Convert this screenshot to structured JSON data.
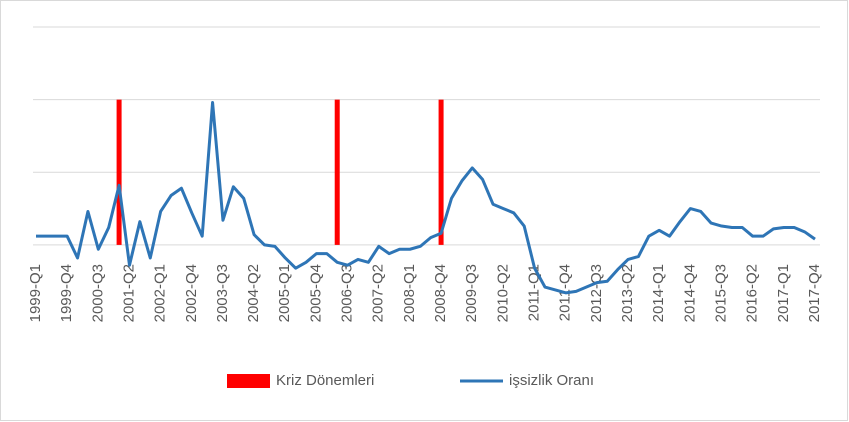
{
  "chart_data": {
    "type": "combo",
    "categories": [
      "1999-Q1",
      null,
      null,
      "1999-Q4",
      null,
      null,
      "2000-Q3",
      null,
      null,
      "2001-Q2",
      null,
      null,
      "2002-Q1",
      null,
      null,
      "2002-Q4",
      null,
      null,
      "2003-Q3",
      null,
      null,
      "2004-Q2",
      null,
      null,
      "2005-Q1",
      null,
      null,
      "2005-Q4",
      null,
      null,
      "2006-Q3",
      null,
      null,
      "2007-Q2",
      null,
      null,
      "2008-Q1",
      null,
      null,
      "2008-Q4",
      null,
      null,
      "2009-Q3",
      null,
      null,
      "2010-Q2",
      null,
      null,
      "2011-Q1",
      null,
      null,
      "2011-Q4",
      null,
      null,
      "2012-Q3",
      null,
      null,
      "2013-Q2",
      null,
      null,
      "2014-Q1",
      null,
      null,
      "2014-Q4",
      null,
      null,
      "2015-Q3",
      null,
      null,
      "2016-Q2",
      null,
      null,
      "2017-Q1",
      null,
      null,
      "2017-Q4"
    ],
    "series": [
      {
        "name": "Kriz Dönemleri",
        "type": "bar",
        "color": "#ff0000",
        "values": [
          null,
          null,
          null,
          null,
          null,
          null,
          null,
          null,
          10,
          null,
          null,
          null,
          null,
          null,
          null,
          null,
          null,
          null,
          null,
          null,
          null,
          null,
          null,
          null,
          null,
          null,
          null,
          null,
          null,
          10,
          null,
          null,
          null,
          null,
          null,
          null,
          null,
          null,
          null,
          10,
          null,
          null,
          null,
          null,
          null,
          null,
          null,
          null,
          null,
          null,
          null,
          null,
          null,
          null,
          null,
          null,
          null,
          null,
          null,
          null,
          null,
          null,
          null,
          null,
          null,
          null,
          null,
          null,
          null,
          null,
          null,
          null,
          null,
          null,
          null,
          null
        ]
      },
      {
        "name": "işsizlik Oranı",
        "type": "line",
        "color": "#2e75b6",
        "values": [
          0.6,
          0.6,
          0.6,
          0.6,
          -0.9,
          2.3,
          -0.3,
          1.2,
          4.1,
          -1.4,
          1.6,
          -0.9,
          2.3,
          3.4,
          3.9,
          2.2,
          0.6,
          9.8,
          1.7,
          4.0,
          3.2,
          0.7,
          0.0,
          -0.1,
          -0.9,
          -1.6,
          -1.2,
          -0.6,
          -0.6,
          -1.2,
          -1.4,
          -1.0,
          -1.2,
          -0.1,
          -0.6,
          -0.3,
          -0.3,
          -0.1,
          0.5,
          0.8,
          3.2,
          4.4,
          5.3,
          4.5,
          2.8,
          2.5,
          2.2,
          1.3,
          -1.6,
          -2.9,
          -3.1,
          -3.3,
          -3.2,
          -2.9,
          -2.6,
          -2.5,
          -1.7,
          -1.0,
          -0.8,
          0.6,
          1.0,
          0.6,
          1.6,
          2.5,
          2.3,
          1.5,
          1.3,
          1.2,
          1.2,
          0.6,
          0.6,
          1.1,
          1.2,
          1.2,
          0.9,
          0.4
        ]
      }
    ],
    "ylim": [
      -4,
      15
    ],
    "yticks": [
      0,
      5,
      10,
      15
    ],
    "grid": true,
    "legend": "bottom"
  }
}
